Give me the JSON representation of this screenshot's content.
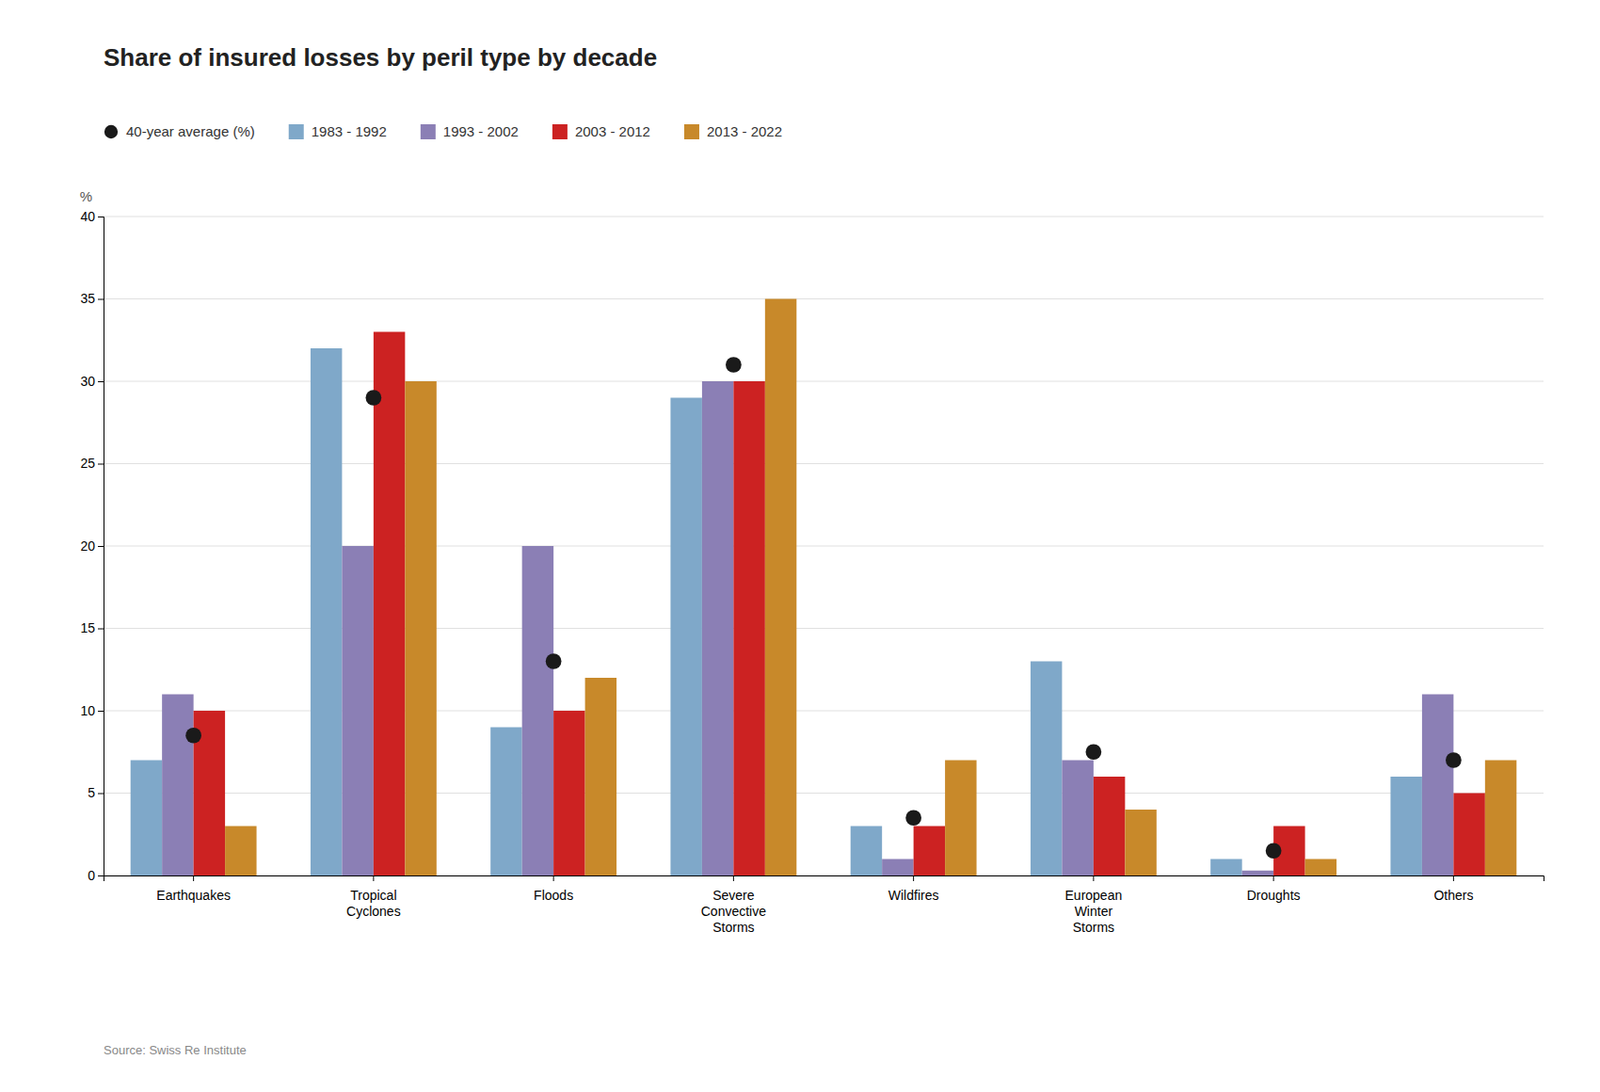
{
  "chart_data": {
    "type": "bar",
    "title": "Share of insured losses by peril type by decade",
    "categories": [
      "Earthquakes",
      "Tropical\nCyclones",
      "Floods",
      "Severe\nConvective\nStorms",
      "Wildfires",
      "European\nWinter\nStorms",
      "Droughts",
      "Others"
    ],
    "series": [
      {
        "name": "40-year average (%)",
        "type": "scatter",
        "marker": "circle",
        "color": "#1a1a1a",
        "values": [
          8.5,
          29,
          13,
          31,
          3.5,
          7.5,
          1.5,
          7
        ]
      },
      {
        "name": "1983 - 1992",
        "color": "#7fa8c9",
        "values": [
          7,
          32,
          9,
          29,
          3,
          13,
          1,
          6
        ]
      },
      {
        "name": "1993 - 2002",
        "color": "#8b7fb5",
        "values": [
          11,
          20,
          20,
          30,
          1,
          7,
          0.3,
          11
        ]
      },
      {
        "name": "2003 - 2012",
        "color": "#cc2222",
        "values": [
          10,
          33,
          10,
          30,
          3,
          6,
          3,
          5
        ]
      },
      {
        "name": "2013 - 2022",
        "color": "#c8892a",
        "values": [
          3,
          30,
          12,
          35,
          7,
          4,
          1,
          7
        ]
      }
    ],
    "ylabel": "%",
    "source": "Source: Swiss Re Institute",
    "ylim": [
      0,
      40
    ],
    "yticks": [
      0,
      5,
      10,
      15,
      20,
      25,
      30,
      35,
      40
    ],
    "grid": true,
    "legend": "top"
  }
}
